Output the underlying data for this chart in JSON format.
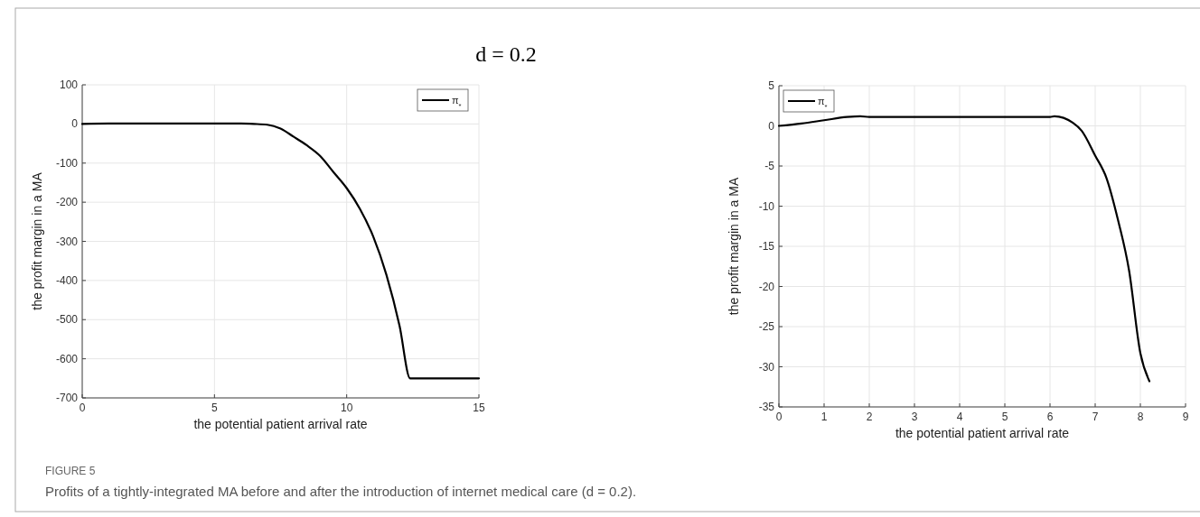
{
  "chart_data": [
    {
      "type": "line",
      "title": "d = 0.2",
      "xlabel": "the potential patient arrival rate",
      "ylabel": "the profit margin in a MA",
      "xlim": [
        0,
        15
      ],
      "xticks": [
        0,
        5,
        10,
        15
      ],
      "ylim": [
        -700,
        100
      ],
      "yticks": [
        -700,
        -600,
        -500,
        -400,
        -300,
        -200,
        -100,
        0,
        100
      ],
      "grid": true,
      "legend": "top right",
      "series": [
        {
          "name": "π$_{*}$",
          "color": "#000000",
          "x": [
            0,
            1,
            2,
            3,
            4,
            5,
            6,
            6.5,
            7,
            7.5,
            8,
            8.5,
            9,
            9.5,
            10,
            10.5,
            11,
            11.5,
            12,
            12.4,
            15
          ],
          "values": [
            0,
            1,
            1,
            1,
            1,
            1,
            1,
            0,
            -2,
            -12,
            -33,
            -55,
            -82,
            -123,
            -164,
            -217,
            -287,
            -385,
            -516,
            -650,
            -650
          ]
        }
      ]
    },
    {
      "type": "line",
      "xlabel": "the potential patient arrival rate",
      "ylabel": "the profit margin in a MA",
      "xlim": [
        0,
        9
      ],
      "xticks": [
        0,
        1,
        2,
        3,
        4,
        5,
        6,
        7,
        8,
        9
      ],
      "ylim": [
        -35,
        5
      ],
      "yticks": [
        -35,
        -30,
        -25,
        -20,
        -15,
        -10,
        -5,
        0,
        5
      ],
      "grid": true,
      "legend": "top left",
      "annotations": [
        "FIGURE 5",
        "Profits of a tightly-integrated MA before and after the introduction of internet medical care (d = 0.2)."
      ],
      "series": [
        {
          "name": "π$_{*}$",
          "color": "#000000",
          "x": [
            0,
            0.5,
            1,
            1.5,
            1.8,
            2,
            3,
            4,
            5,
            6,
            6.1,
            6.3,
            6.5,
            6.7,
            7,
            7.25,
            7.5,
            7.75,
            8,
            8.2
          ],
          "values": [
            0,
            0.3,
            0.7,
            1.1,
            1.2,
            1.1,
            1.1,
            1.1,
            1.1,
            1.1,
            1.2,
            1,
            0.4,
            -0.6,
            -3.7,
            -6.5,
            -11.6,
            -18,
            -28.3,
            -31.8
          ]
        }
      ]
    }
  ]
}
